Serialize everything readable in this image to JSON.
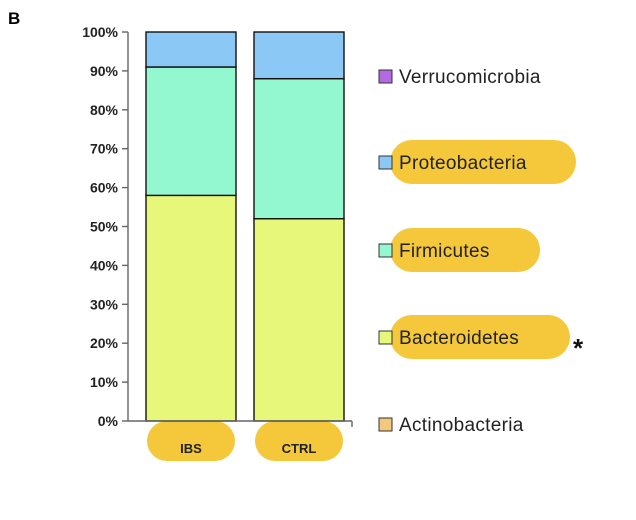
{
  "panel_label": "B",
  "highlight_color": "#f5c83c",
  "chart_data": {
    "type": "bar",
    "stacked": true,
    "categories": [
      "IBS",
      "CTRL"
    ],
    "ylim": [
      0,
      100
    ],
    "y_ticks": [
      "0%",
      "10%",
      "20%",
      "30%",
      "40%",
      "50%",
      "60%",
      "70%",
      "80%",
      "90%",
      "100%"
    ],
    "series": [
      {
        "name": "Actinobacteria",
        "color": "#f2c77e",
        "values": [
          0,
          0
        ],
        "highlighted": false
      },
      {
        "name": "Bacteroidetes",
        "color": "#e6f77a",
        "values": [
          58,
          52
        ],
        "highlighted": true,
        "annotation": "*"
      },
      {
        "name": "Firmicutes",
        "color": "#93f7d0",
        "values": [
          33,
          36
        ],
        "highlighted": true
      },
      {
        "name": "Proteobacteria",
        "color": "#8cc8f5",
        "values": [
          9,
          12
        ],
        "highlighted": true
      },
      {
        "name": "Verrucomicrobia",
        "color": "#b36ae0",
        "values": [
          0,
          0
        ],
        "highlighted": false
      }
    ],
    "legend_order": [
      "Verrucomicrobia",
      "Proteobacteria",
      "Firmicutes",
      "Bacteroidetes",
      "Actinobacteria"
    ],
    "legend_position": "right",
    "grid": false
  }
}
